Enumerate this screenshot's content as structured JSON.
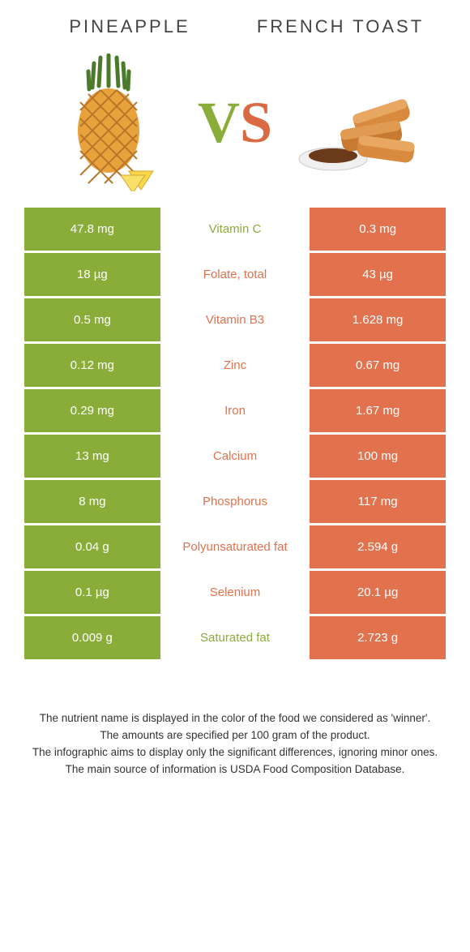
{
  "food_left": {
    "name": "Pineapple"
  },
  "food_right": {
    "name": "French toast"
  },
  "vs": {
    "v": "V",
    "s": "S"
  },
  "colors": {
    "green": "#8aad3a",
    "orange": "#e2724d",
    "mid_green": "#8aad3a",
    "mid_orange": "#e2724d"
  },
  "rows": [
    {
      "left": "47.8 mg",
      "label": "Vitamin C",
      "winner": "green",
      "right": "0.3 mg"
    },
    {
      "left": "18 µg",
      "label": "Folate, total",
      "winner": "orange",
      "right": "43 µg"
    },
    {
      "left": "0.5 mg",
      "label": "Vitamin B3",
      "winner": "orange",
      "right": "1.628 mg"
    },
    {
      "left": "0.12 mg",
      "label": "Zinc",
      "winner": "orange",
      "right": "0.67 mg"
    },
    {
      "left": "0.29 mg",
      "label": "Iron",
      "winner": "orange",
      "right": "1.67 mg"
    },
    {
      "left": "13 mg",
      "label": "Calcium",
      "winner": "orange",
      "right": "100 mg"
    },
    {
      "left": "8 mg",
      "label": "Phosphorus",
      "winner": "orange",
      "right": "117 mg"
    },
    {
      "left": "0.04 g",
      "label": "Polyunsaturated fat",
      "winner": "orange",
      "right": "2.594 g"
    },
    {
      "left": "0.1 µg",
      "label": "Selenium",
      "winner": "orange",
      "right": "20.1 µg"
    },
    {
      "left": "0.009 g",
      "label": "Saturated fat",
      "winner": "green",
      "right": "2.723 g"
    }
  ],
  "footer": {
    "l1": "The nutrient name is displayed in the color of the food we considered as 'winner'.",
    "l2": "The amounts are specified per 100 gram of the product.",
    "l3": "The infographic aims to display only the significant differences, ignoring minor ones.",
    "l4": "The main source of information is USDA Food Composition Database."
  }
}
